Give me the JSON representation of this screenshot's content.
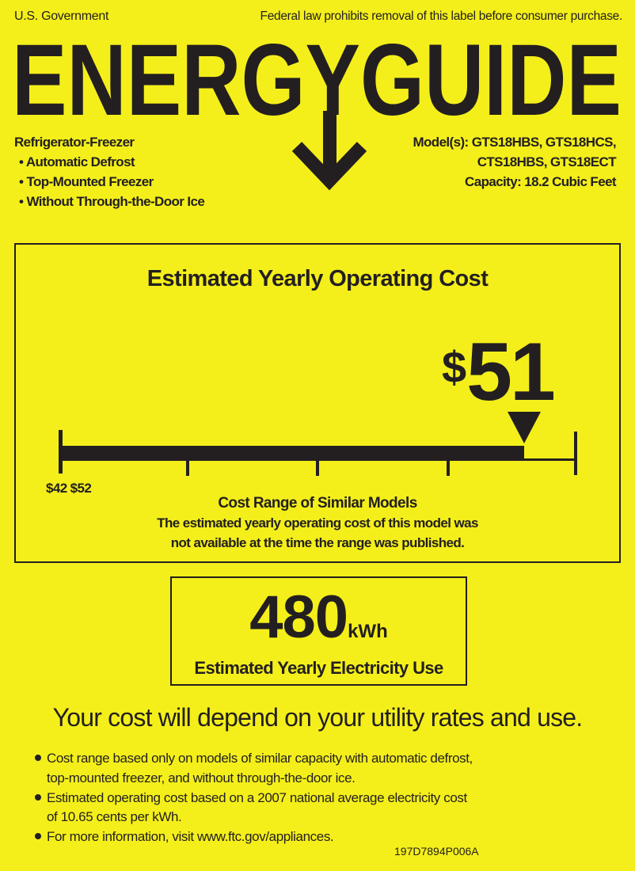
{
  "header": {
    "government": "U.S. Government",
    "notice": "Federal law prohibits removal of this label before consumer purchase.",
    "logo_text": "ENERGYGUIDE"
  },
  "product": {
    "type": "Refrigerator-Freezer",
    "features": [
      "• Automatic Defrost",
      "• Top-Mounted Freezer",
      "• Without Through-the-Door Ice"
    ],
    "models_line1": "Model(s): GTS18HBS, GTS18HCS,",
    "models_line2": "CTS18HBS, GTS18ECT",
    "capacity": "Capacity: 18.2 Cubic Feet"
  },
  "cost": {
    "title": "Estimated Yearly Operating Cost",
    "currency": "$",
    "value": "51",
    "value_number": 51,
    "range_low": 42,
    "range_high": 52,
    "range_label": "$42 $52",
    "range_title": "Cost Range of Similar Models",
    "range_note_line1": "The estimated yearly operating cost of this model was",
    "range_note_line2": "not available at the time the range was published."
  },
  "electricity": {
    "value": "480",
    "unit": "kWh",
    "label": "Estimated Yearly Electricity Use"
  },
  "disclaimer": "Your cost will depend on your utility rates and use.",
  "notes": [
    "Cost range based only on models of similar capacity with automatic defrost,",
    "top-mounted freezer, and without through-the-door ice.",
    "Estimated operating cost based on a 2007 national average electricity cost",
    "of 10.65 cents per kWh.",
    "For more information, visit www.ftc.gov/appliances."
  ],
  "label_code": "197D7894P006A",
  "colors": {
    "background": "#f4ef1a",
    "ink": "#231f20"
  }
}
